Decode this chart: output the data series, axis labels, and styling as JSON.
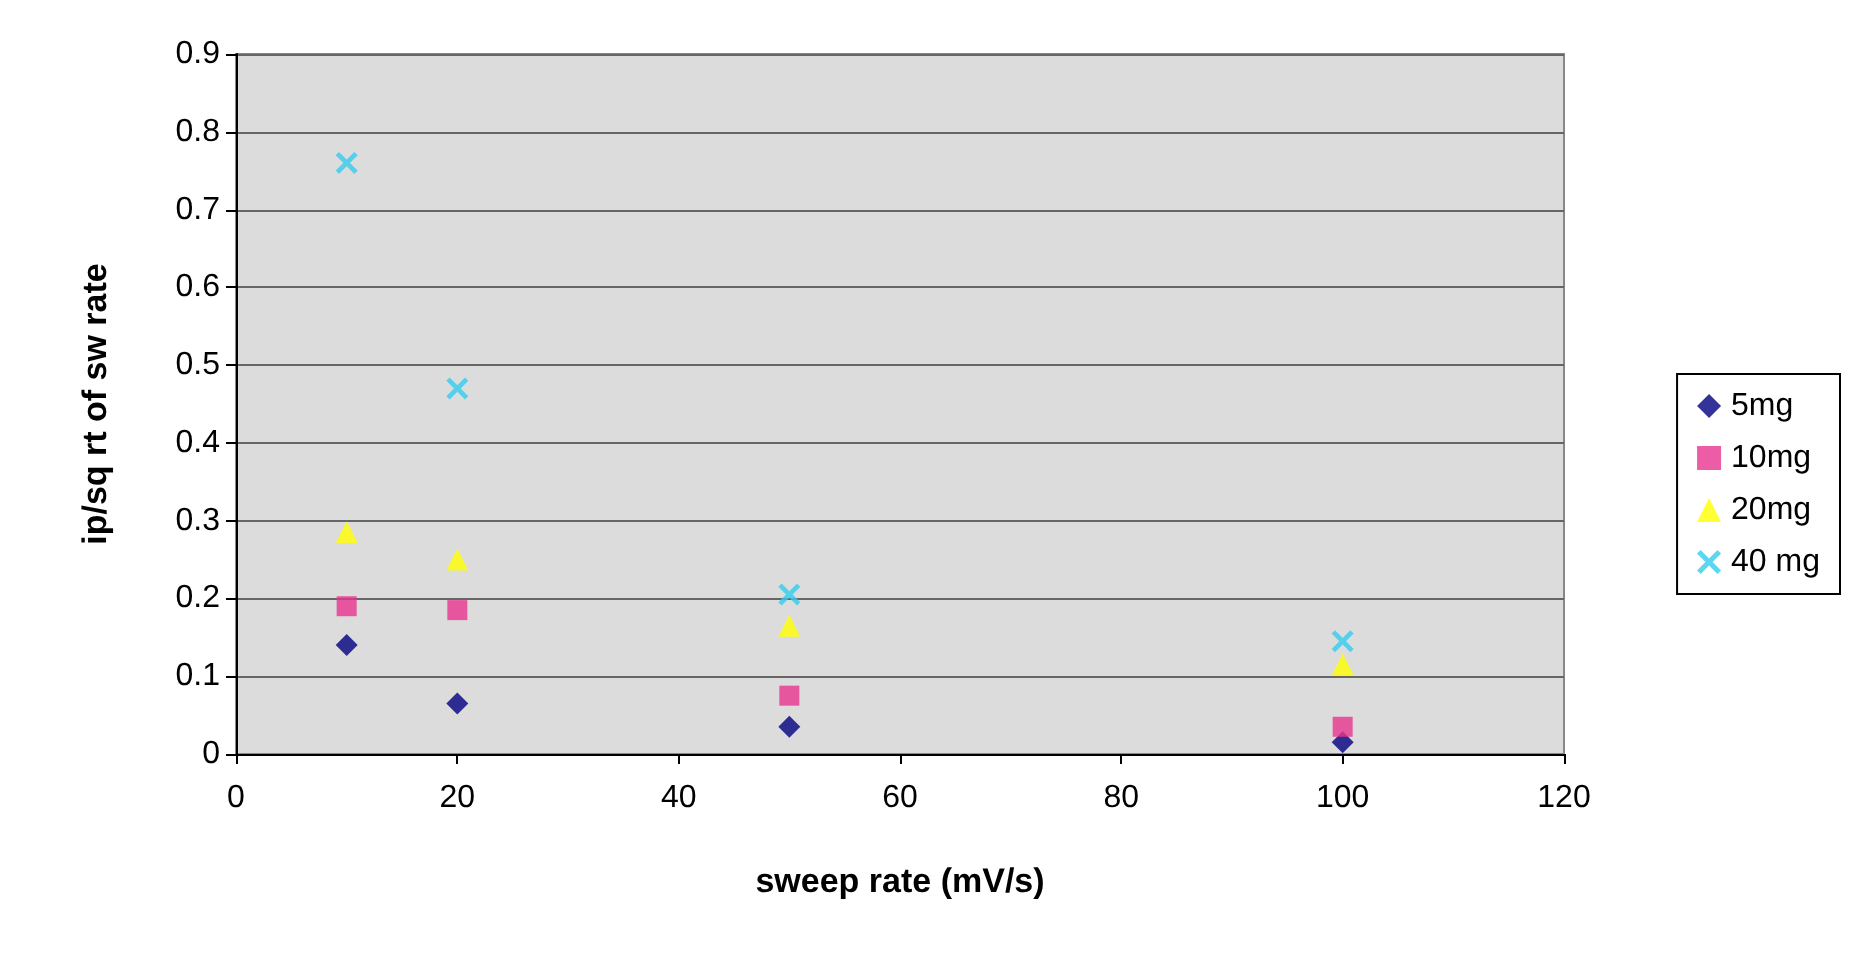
{
  "chart_data": {
    "type": "scatter",
    "xlabel": "sweep rate (mV/s)",
    "ylabel": "ip/sq rt of sw rate",
    "x": [
      10,
      20,
      50,
      100
    ],
    "series": [
      {
        "name": "5mg",
        "color": "#000080",
        "marker": "diamond",
        "values": [
          0.14,
          0.065,
          0.035,
          0.015
        ]
      },
      {
        "name": "10mg",
        "color": "#e8358e",
        "marker": "square",
        "values": [
          0.19,
          0.185,
          0.075,
          0.035
        ]
      },
      {
        "name": "20mg",
        "color": "#ffff00",
        "marker": "triangle",
        "values": [
          0.285,
          0.25,
          0.165,
          0.115
        ]
      },
      {
        "name": "40 mg",
        "color": "#33ccee",
        "marker": "cross",
        "values": [
          0.76,
          0.47,
          0.205,
          0.145
        ]
      }
    ],
    "xlim": [
      0,
      120
    ],
    "xticks": [
      0,
      20,
      40,
      60,
      80,
      100,
      120
    ],
    "ylim": [
      0,
      0.9
    ],
    "yticks": [
      0,
      0.1,
      0.2,
      0.3,
      0.4,
      0.5,
      0.6,
      0.7,
      0.8,
      0.9
    ],
    "grid": "y",
    "legend": "right"
  }
}
